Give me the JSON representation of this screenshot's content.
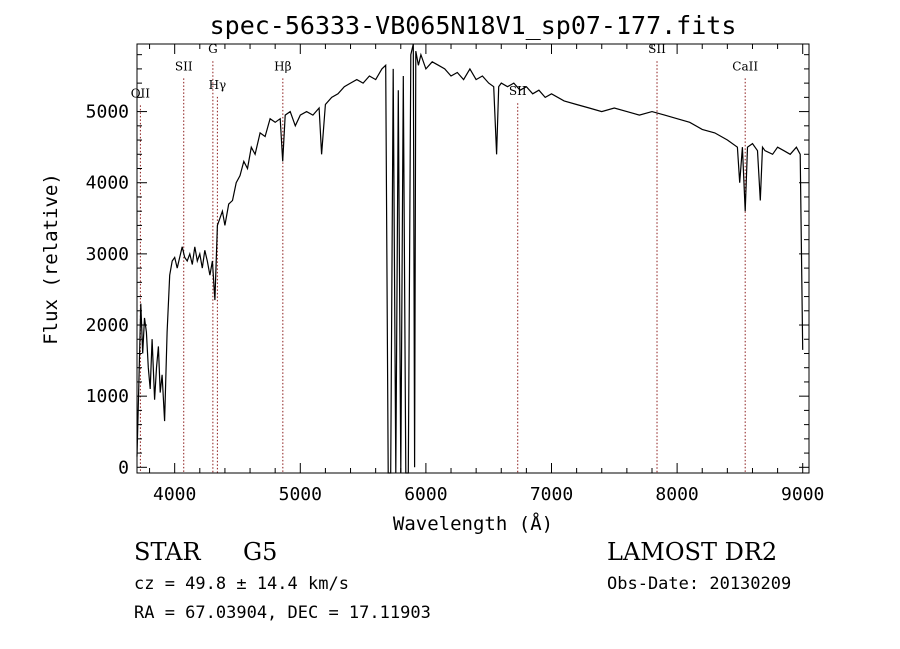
{
  "chart_data": {
    "type": "line",
    "title": "spec-56333-VB065N18V1_sp07-177.fits",
    "xlabel": "Wavelength (Å)",
    "ylabel": "Flux (relative)",
    "xlim": [
      3700,
      9050
    ],
    "ylim": [
      -80,
      5950
    ],
    "xticks": [
      4000,
      5000,
      6000,
      7000,
      8000,
      9000
    ],
    "yticks": [
      0,
      1000,
      2000,
      3000,
      4000,
      5000
    ],
    "grid": false,
    "series": [
      {
        "x": [
          3700,
          3715,
          3730,
          3745,
          3760,
          3775,
          3790,
          3805,
          3820,
          3840,
          3855,
          3870,
          3885,
          3900,
          3920,
          3940,
          3960,
          3980,
          4000,
          4020,
          4040,
          4060,
          4080,
          4100,
          4120,
          4140,
          4160,
          4180,
          4200,
          4220,
          4240,
          4260,
          4280,
          4300,
          4320,
          4340,
          4360,
          4380,
          4400,
          4430,
          4460,
          4490,
          4520,
          4550,
          4580,
          4610,
          4640,
          4680,
          4720,
          4760,
          4800,
          4840,
          4860,
          4880,
          4920,
          4960,
          5000,
          5050,
          5100,
          5150,
          5170,
          5200,
          5250,
          5300,
          5350,
          5400,
          5450,
          5500,
          5550,
          5600,
          5650,
          5680,
          5700,
          5720,
          5740,
          5760,
          5780,
          5800,
          5820,
          5840,
          5860,
          5880,
          5900,
          5910,
          5920,
          5940,
          5960,
          5980,
          6000,
          6050,
          6100,
          6150,
          6200,
          6250,
          6300,
          6350,
          6400,
          6450,
          6500,
          6540,
          6563,
          6580,
          6600,
          6650,
          6700,
          6750,
          6800,
          6850,
          6900,
          6950,
          7000,
          7100,
          7200,
          7300,
          7400,
          7500,
          7600,
          7700,
          7800,
          7900,
          8000,
          8100,
          8200,
          8300,
          8400,
          8480,
          8498,
          8520,
          8542,
          8560,
          8600,
          8640,
          8662,
          8680,
          8700,
          8760,
          8800,
          8850,
          8900,
          8950,
          8980,
          9000
        ],
        "y": [
          150,
          1200,
          2300,
          1600,
          2100,
          1900,
          1400,
          1100,
          1800,
          950,
          1400,
          1700,
          1050,
          1300,
          650,
          1900,
          2700,
          2900,
          2950,
          2800,
          2950,
          3100,
          2950,
          2900,
          3000,
          2850,
          3100,
          2900,
          3000,
          2800,
          3050,
          2900,
          2700,
          2900,
          2350,
          3400,
          3500,
          3600,
          3400,
          3700,
          3750,
          4000,
          4100,
          4300,
          4200,
          4500,
          4400,
          4700,
          4650,
          4900,
          4850,
          4900,
          4300,
          4950,
          5000,
          4800,
          4950,
          5000,
          4950,
          5050,
          4400,
          5100,
          5200,
          5250,
          5350,
          5400,
          5450,
          5400,
          5500,
          5450,
          5600,
          5650,
          -80,
          -80,
          5600,
          -80,
          5300,
          -80,
          5500,
          -80,
          -80,
          5800,
          5950,
          0,
          5850,
          5650,
          5800,
          5700,
          5600,
          5700,
          5650,
          5600,
          5500,
          5550,
          5450,
          5600,
          5450,
          5500,
          5400,
          5350,
          4400,
          5350,
          5400,
          5350,
          5400,
          5300,
          5350,
          5250,
          5300,
          5200,
          5250,
          5150,
          5100,
          5050,
          5000,
          5050,
          5000,
          4950,
          5000,
          4950,
          4900,
          4850,
          4750,
          4700,
          4600,
          4500,
          4000,
          4500,
          3600,
          4500,
          4550,
          4450,
          3750,
          4500,
          4450,
          4400,
          4500,
          4450,
          4400,
          4500,
          4400,
          1650
        ]
      }
    ],
    "lines": [
      {
        "label": "OII",
        "x": 3727,
        "label_y": 5200
      },
      {
        "label": "SII",
        "x": 4072,
        "label_y": 5580
      },
      {
        "label": "G",
        "x": 4304,
        "label_y": 5820
      },
      {
        "label": "Hγ",
        "x": 4340,
        "label_y": 5320
      },
      {
        "label": "Hβ",
        "x": 4861,
        "label_y": 5580
      },
      {
        "label": "SII",
        "x": 6731,
        "label_y": 5230
      },
      {
        "label": "SII",
        "x": 7840,
        "label_y": 5820
      },
      {
        "label": "CaII",
        "x": 8542,
        "label_y": 5580
      }
    ],
    "line_color": "#8b1a1a",
    "spectrum_color": "#000000"
  },
  "footer": {
    "class_label": "STAR",
    "subclass": "G5",
    "survey": "LAMOST DR2",
    "cz": "cz = 49.8 ± 14.4 km/s",
    "obs_date": "Obs-Date: 20130209",
    "coords": "RA =  67.03904, DEC =  17.11903"
  }
}
